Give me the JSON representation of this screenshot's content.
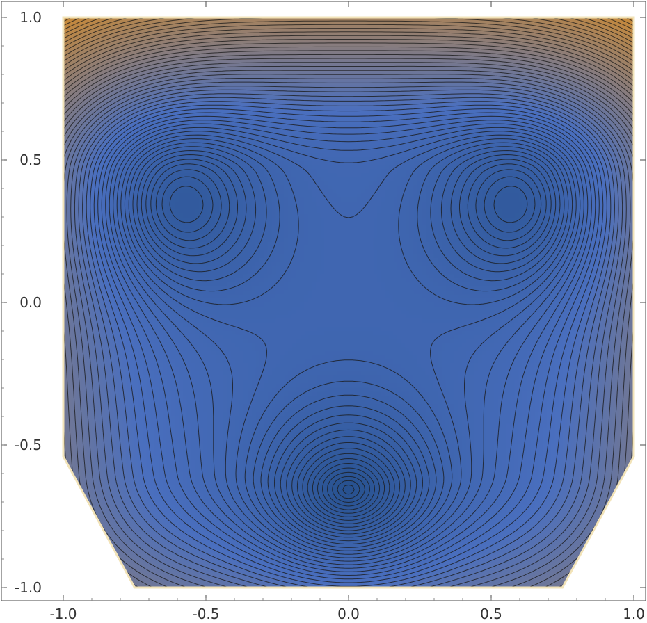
{
  "chart_data": {
    "type": "contour",
    "title": "",
    "xlabel": "",
    "ylabel": "",
    "xlim": [
      -1.0,
      1.0
    ],
    "ylim": [
      -1.0,
      1.0
    ],
    "x_ticks": [
      {
        "value": -1.0,
        "label": "-1.0"
      },
      {
        "value": -0.5,
        "label": "-0.5"
      },
      {
        "value": 0.0,
        "label": "0.0"
      },
      {
        "value": 0.5,
        "label": "0.5"
      },
      {
        "value": 1.0,
        "label": "1.0"
      }
    ],
    "y_ticks": [
      {
        "value": 1.0,
        "label": "1.0"
      },
      {
        "value": 0.5,
        "label": "0.5"
      },
      {
        "value": 0.0,
        "label": "0.0"
      },
      {
        "value": -0.5,
        "label": "-0.5"
      },
      {
        "value": -1.0,
        "label": "-1.0"
      }
    ],
    "domain_polygon": [
      [
        -1.0,
        1.0
      ],
      [
        1.0,
        1.0
      ],
      [
        1.0,
        -0.54
      ],
      [
        0.75,
        -1.0
      ],
      [
        -0.75,
        -1.0
      ],
      [
        -1.0,
        -0.54
      ]
    ],
    "minima": [
      {
        "x": -0.66,
        "y": 0.36
      },
      {
        "x": 0.66,
        "y": 0.36
      },
      {
        "x": 0.0,
        "y": -0.72
      }
    ],
    "saddle": {
      "x": 0.0,
      "y": 0.0
    },
    "colors": {
      "low": "#27518f",
      "mid": "#4a6fbf",
      "high": "#c88a3a",
      "contour_line": "#1a1a1a",
      "frame": "#666666"
    },
    "grid": false
  }
}
